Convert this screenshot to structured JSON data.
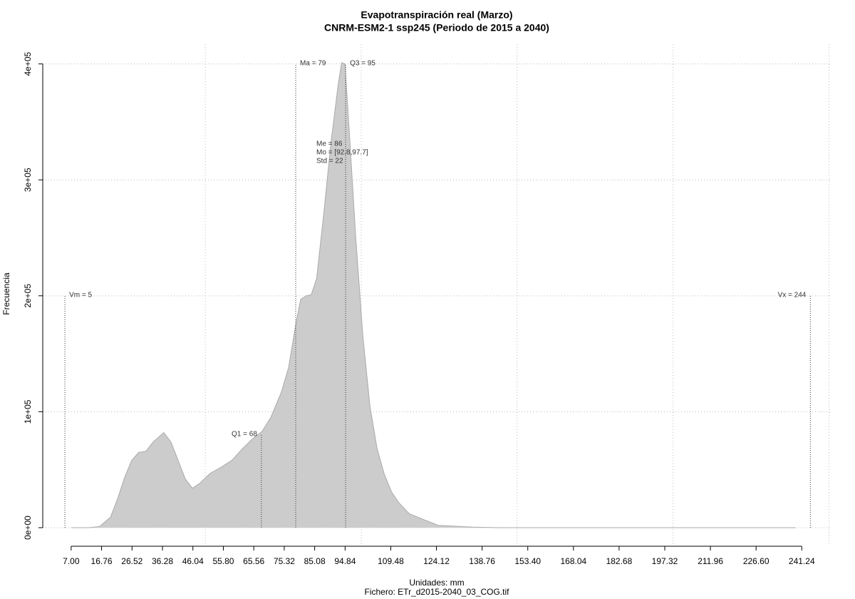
{
  "chart_data": {
    "type": "area",
    "title": "Evapotranspiración real (Marzo)",
    "subtitle": "CNRM-ESM2-1 ssp245 (Periodo de 2015 a 2040)",
    "x_label": "Unidades: mm",
    "caption": "Fichero: ETr_d2015-2040_03_COG.tif",
    "y_label": "Frecuencia",
    "color": "#cccccc",
    "x": [
      7,
      12.7,
      16.1,
      19.6,
      21.9,
      24.1,
      26.4,
      28.7,
      31,
      33.3,
      36.7,
      39,
      41.3,
      43.6,
      45.9,
      48.1,
      51.6,
      55,
      58.5,
      61.9,
      65.3,
      68.2,
      71,
      74.4,
      76.7,
      79,
      80.6,
      82.4,
      84,
      85.7,
      88,
      90.3,
      92.6,
      93.7,
      94.8,
      96.4,
      98.2,
      100.5,
      102.8,
      105.1,
      107.4,
      109.7,
      111.9,
      115.4,
      120,
      124.7,
      136,
      144,
      239.3
    ],
    "values": [
      0,
      0,
      1000,
      9000,
      25000,
      43000,
      58000,
      65000,
      66000,
      74000,
      82000,
      74000,
      58000,
      42000,
      34000,
      38000,
      47000,
      52000,
      58000,
      68000,
      77000,
      83000,
      95000,
      117000,
      138000,
      175000,
      197000,
      200000,
      201000,
      215000,
      271000,
      332000,
      382000,
      401000,
      400000,
      332000,
      252000,
      166000,
      105000,
      68000,
      46000,
      31000,
      22000,
      12000,
      7000,
      2000,
      500,
      0,
      0
    ],
    "xlim": [
      -2.1,
      251
    ],
    "ylim": [
      -16000,
      417000
    ],
    "xticks": [
      {
        "value": 7,
        "label": "7.00"
      },
      16.76,
      26.52,
      36.28,
      46.04,
      {
        "value": 55.8,
        "label": "55.80"
      },
      65.56,
      75.32,
      85.08,
      94.84,
      109.48,
      124.12,
      138.76,
      {
        "value": 153.4,
        "label": "153.40"
      },
      168.04,
      182.68,
      197.32,
      211.96,
      {
        "value": 226.6,
        "label": "226.60"
      },
      241.24
    ],
    "yticks": [
      {
        "value": 0,
        "label": "0e+00"
      },
      {
        "value": 100000,
        "label": "1e+05"
      },
      {
        "value": 200000,
        "label": "2e+05"
      },
      {
        "value": 300000,
        "label": "3e+05"
      },
      {
        "value": 400000,
        "label": "4e+05"
      }
    ],
    "x_grid": [
      50,
      100,
      150,
      200,
      250
    ],
    "grid": true,
    "annotations": [
      {
        "label": "Vm = 5",
        "x": 5,
        "y": 200000
      },
      {
        "label": "Q1 = 68",
        "x": 68,
        "y": 80000
      },
      {
        "label": "Ma = 79",
        "x": 79,
        "y": 400000
      },
      {
        "label": "Q3 = 95",
        "x": 95,
        "y": 400000
      },
      {
        "label": "Vx = 244",
        "x": 244,
        "y": 200000
      }
    ],
    "stats": [
      "Me = 86",
      "Mo = [92.8,97.7]",
      "Std = 22"
    ]
  }
}
